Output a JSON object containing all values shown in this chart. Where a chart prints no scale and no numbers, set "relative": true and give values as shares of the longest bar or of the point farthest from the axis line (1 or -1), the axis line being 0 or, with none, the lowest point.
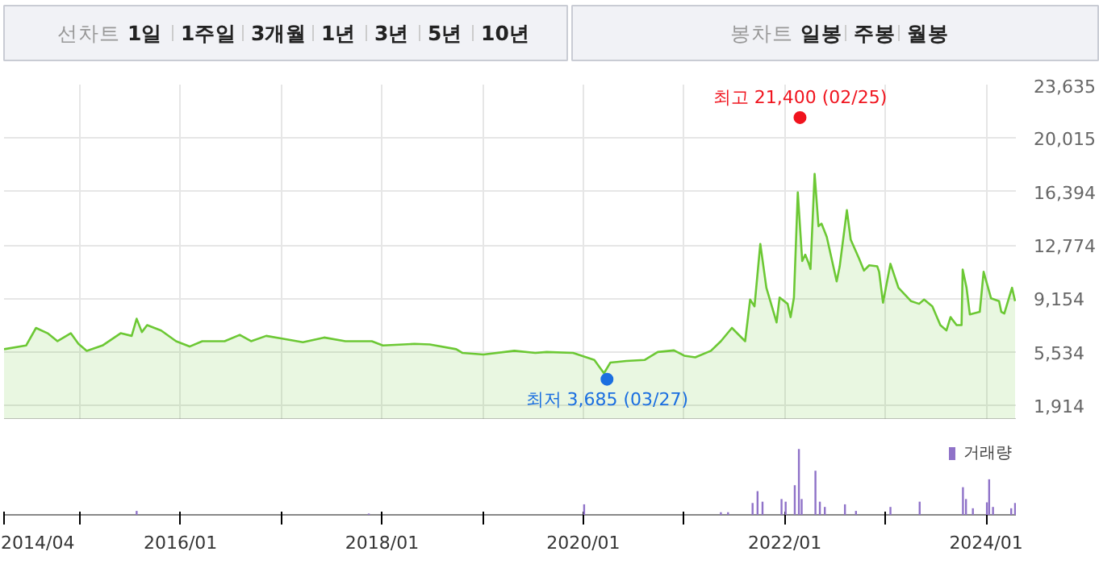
{
  "chart_data": [
    {
      "type": "other",
      "annotations": [
        "선차트",
        "1일",
        "1주일",
        "3개월",
        "1년",
        "3년",
        "5년",
        "10년"
      ]
    },
    {
      "type": "other",
      "annotations": [
        "봉차트",
        "일봉",
        "주봉",
        "월봉"
      ]
    },
    {
      "type": "area",
      "xlim": [
        "2014-04-01",
        "2024-04-18"
      ],
      "ylim": [
        940,
        23635
      ],
      "yticks": [
        {
          "value": 1914,
          "label": "1,914"
        },
        {
          "value": 5534,
          "label": "5,534"
        },
        {
          "value": 9154,
          "label": "9,154"
        },
        {
          "value": 12774,
          "label": "12,774"
        },
        {
          "value": 16394,
          "label": "16,394"
        },
        {
          "value": 20015,
          "label": "20,015"
        },
        {
          "value": 23635,
          "label": "23,635"
        }
      ],
      "xticks": [
        "2014-04-01",
        "2015-01-01",
        "2016-01-01",
        "2017-01-01",
        "2018-01-01",
        "2019-01-01",
        "2020-01-01",
        "2021-01-01",
        "2022-01-01",
        "2023-01-01",
        "2024-01-01"
      ],
      "tick_labels": "y",
      "grid": true,
      "series": [
        {
          "type": "area",
          "color": "#6cc834",
          "x": [
            "2014-04-01",
            "2014-06-20",
            "2014-07-26",
            "2014-09-06",
            "2014-10-12",
            "2014-11-29",
            "2014-12-27",
            "2015-01-26",
            "2015-03-24",
            "2015-05-29",
            "2015-07-08",
            "2015-07-26",
            "2015-08-14",
            "2015-09-02",
            "2015-10-23",
            "2015-12-16",
            "2016-02-03",
            "2016-03-20",
            "2016-06-09",
            "2016-08-03",
            "2016-09-13",
            "2016-11-07",
            "2017-01-04",
            "2017-03-20",
            "2017-06-05",
            "2017-08-21",
            "2017-11-25",
            "2018-01-04",
            "2018-04-29",
            "2018-06-23",
            "2018-09-27",
            "2018-10-19",
            "2019-01-04",
            "2019-04-26",
            "2019-07-11",
            "2019-08-21",
            "2019-11-25",
            "2020-02-10",
            "2020-03-16",
            "2020-04-08",
            "2020-06-05",
            "2020-08-10",
            "2020-09-27",
            "2020-11-25",
            "2021-01-01",
            "2021-02-10",
            "2021-04-08",
            "2021-05-14",
            "2021-06-23",
            "2021-08-10",
            "2021-08-28",
            "2021-09-13",
            "2021-10-04",
            "2021-10-26",
            "2021-12-02",
            "2021-12-13",
            "2022-01-11",
            "2022-01-22",
            "2022-02-03",
            "2022-02-17",
            "2022-03-05",
            "2022-03-16",
            "2022-03-27",
            "2022-04-04",
            "2022-04-19",
            "2022-05-03",
            "2022-05-14",
            "2022-06-02",
            "2022-07-08",
            "2022-07-19",
            "2022-08-14",
            "2022-08-28",
            "2022-09-27",
            "2022-10-15",
            "2022-11-03",
            "2022-12-02",
            "2022-12-09",
            "2022-12-23",
            "2023-01-19",
            "2023-02-17",
            "2023-04-04",
            "2023-05-03",
            "2023-05-21",
            "2023-06-20",
            "2023-07-19",
            "2023-08-10",
            "2023-08-25",
            "2023-09-16",
            "2023-10-04",
            "2023-10-08",
            "2023-10-22",
            "2023-11-03",
            "2023-12-09",
            "2023-12-23",
            "2024-01-19",
            "2024-02-17",
            "2024-02-25",
            "2024-03-07",
            "2024-04-04",
            "2024-04-15"
          ],
          "values": [
            5720,
            5970,
            7160,
            6800,
            6260,
            6800,
            6080,
            5610,
            5970,
            6800,
            6620,
            7780,
            6880,
            7350,
            6980,
            6260,
            5900,
            6260,
            6260,
            6690,
            6260,
            6620,
            6440,
            6190,
            6510,
            6260,
            6260,
            5970,
            6080,
            6040,
            5720,
            5470,
            5360,
            5610,
            5470,
            5530,
            5470,
            4990,
            4090,
            4810,
            4920,
            4990,
            5530,
            5640,
            5280,
            5170,
            5610,
            6260,
            7160,
            6260,
            9080,
            8620,
            12850,
            9880,
            7530,
            9220,
            8790,
            7890,
            9220,
            16330,
            11690,
            12120,
            11610,
            11150,
            17590,
            14050,
            14220,
            13320,
            10310,
            11330,
            15130,
            13130,
            11870,
            11040,
            11400,
            11330,
            10960,
            8870,
            11500,
            9880,
            8970,
            8790,
            9080,
            8620,
            7350,
            6990,
            7890,
            7350,
            7350,
            11110,
            9880,
            8070,
            8250,
            10960,
            9160,
            8970,
            8250,
            8140,
            9880,
            8970
          ]
        },
        {
          "type": "scatter",
          "color": "#f0141e",
          "x": [
            "2022-02-25"
          ],
          "values": [
            21400
          ],
          "value_labels": [
            "최고 21,400 (02/25)"
          ]
        },
        {
          "type": "scatter",
          "color": "#1b6fe0",
          "x": [
            "2020-03-27"
          ],
          "values": [
            3685
          ],
          "value_labels": [
            "최저 3,685 (03/27)"
          ]
        }
      ]
    },
    {
      "type": "bar",
      "relative": true,
      "xlim": [
        "2014-04-01",
        "2024-04-18"
      ],
      "xticks": [
        {
          "value": "2014-04-01",
          "label": "2014/04"
        },
        {
          "value": "2015-01-01",
          "label": null
        },
        {
          "value": "2016-01-01",
          "label": "2016/01"
        },
        {
          "value": "2017-01-01",
          "label": null
        },
        {
          "value": "2018-01-01",
          "label": "2018/01"
        },
        {
          "value": "2019-01-01",
          "label": null
        },
        {
          "value": "2020-01-01",
          "label": "2020/01"
        },
        {
          "value": "2021-01-01",
          "label": null
        },
        {
          "value": "2022-01-01",
          "label": "2022/01"
        },
        {
          "value": "2023-01-01",
          "label": null
        },
        {
          "value": "2024-01-01",
          "label": "2024/01"
        }
      ],
      "tick_labels": "x",
      "legend": "top right",
      "series": [
        {
          "name": "거래량",
          "color": "#8f72c8",
          "x": [
            "2015-07-26",
            "2017-11-14",
            "2020-01-04",
            "2021-05-14",
            "2021-06-09",
            "2021-09-06",
            "2021-09-24",
            "2021-10-12",
            "2021-12-20",
            "2022-01-04",
            "2022-02-06",
            "2022-02-21",
            "2022-03-03",
            "2022-04-22",
            "2022-05-08",
            "2022-05-26",
            "2022-08-07",
            "2022-09-16",
            "2023-01-19",
            "2023-05-05",
            "2023-10-09",
            "2023-10-20",
            "2023-11-14",
            "2024-01-04",
            "2024-01-12",
            "2024-01-26",
            "2024-04-01",
            "2024-04-15"
          ],
          "values": [
            0.06,
            0.02,
            0.16,
            0.04,
            0.04,
            0.18,
            0.36,
            0.2,
            0.24,
            0.2,
            0.45,
            1,
            0.24,
            0.67,
            0.2,
            0.12,
            0.16,
            0.06,
            0.12,
            0.2,
            0.42,
            0.24,
            0.1,
            0.19,
            0.54,
            0.12,
            0.1,
            0.18
          ]
        }
      ]
    }
  ]
}
